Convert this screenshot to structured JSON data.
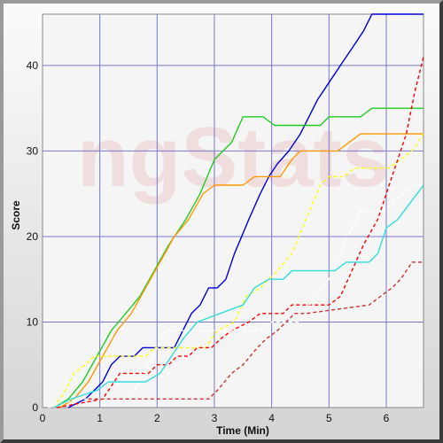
{
  "chart_data": {
    "type": "line",
    "xlabel": "Time (Min)",
    "ylabel": "Score",
    "xlim": [
      0,
      6.65
    ],
    "ylim": [
      0,
      46
    ],
    "x_ticks": [
      "0",
      "1",
      "2",
      "3",
      "4",
      "5",
      "6"
    ],
    "y_ticks": [
      "0",
      "10",
      "20",
      "30",
      "40"
    ],
    "x_tick_values": [
      0,
      1,
      2,
      3,
      4,
      5,
      6
    ],
    "y_tick_values": [
      0,
      10,
      20,
      30,
      40
    ],
    "grid": true,
    "watermark": "ngStats",
    "series": [
      {
        "color": "#0000dd",
        "style": "solid",
        "points": [
          [
            0.45,
            0
          ],
          [
            0.75,
            1
          ],
          [
            0.9,
            2
          ],
          [
            1.05,
            3
          ],
          [
            1.2,
            5
          ],
          [
            1.35,
            6
          ],
          [
            1.6,
            6
          ],
          [
            1.75,
            7
          ],
          [
            2.3,
            7
          ],
          [
            2.45,
            9
          ],
          [
            2.6,
            11
          ],
          [
            2.75,
            12
          ],
          [
            2.9,
            14
          ],
          [
            3.05,
            14
          ],
          [
            3.2,
            15
          ],
          [
            3.35,
            18
          ],
          [
            3.6,
            22
          ],
          [
            3.8,
            25
          ],
          [
            3.95,
            27
          ],
          [
            4.1,
            28.5
          ],
          [
            4.3,
            30
          ],
          [
            4.5,
            32
          ],
          [
            4.65,
            34
          ],
          [
            4.8,
            36
          ],
          [
            5.0,
            38
          ],
          [
            5.2,
            40
          ],
          [
            5.4,
            42
          ],
          [
            5.6,
            44
          ],
          [
            5.75,
            46
          ],
          [
            6.65,
            46
          ]
        ]
      },
      {
        "color": "#22cc22",
        "style": "solid",
        "points": [
          [
            0.2,
            0
          ],
          [
            0.45,
            1
          ],
          [
            0.7,
            3
          ],
          [
            0.95,
            6
          ],
          [
            1.2,
            9
          ],
          [
            1.45,
            11
          ],
          [
            1.7,
            13
          ],
          [
            1.95,
            16
          ],
          [
            2.2,
            19
          ],
          [
            2.5,
            22
          ],
          [
            2.75,
            25
          ],
          [
            3.0,
            29
          ],
          [
            3.3,
            31
          ],
          [
            3.5,
            34
          ],
          [
            3.85,
            34
          ],
          [
            4.05,
            33
          ],
          [
            4.85,
            33
          ],
          [
            5.0,
            34
          ],
          [
            5.55,
            34
          ],
          [
            5.75,
            35
          ],
          [
            6.65,
            35
          ]
        ]
      },
      {
        "color": "#ff9900",
        "style": "solid",
        "points": [
          [
            0.3,
            0
          ],
          [
            0.55,
            1
          ],
          [
            0.8,
            3
          ],
          [
            1.05,
            6
          ],
          [
            1.3,
            9
          ],
          [
            1.55,
            11
          ],
          [
            1.8,
            14
          ],
          [
            2.05,
            17
          ],
          [
            2.3,
            20
          ],
          [
            2.55,
            22
          ],
          [
            2.8,
            25
          ],
          [
            3.0,
            26
          ],
          [
            3.5,
            26
          ],
          [
            3.7,
            27
          ],
          [
            4.15,
            27
          ],
          [
            4.35,
            29
          ],
          [
            4.5,
            30
          ],
          [
            5.15,
            30
          ],
          [
            5.35,
            31
          ],
          [
            5.55,
            32
          ],
          [
            6.65,
            32
          ]
        ]
      },
      {
        "color": "#ffff00",
        "style": "dashed",
        "points": [
          [
            0.2,
            0
          ],
          [
            0.4,
            2
          ],
          [
            0.55,
            4
          ],
          [
            0.75,
            5
          ],
          [
            0.9,
            6
          ],
          [
            1.8,
            6
          ],
          [
            1.95,
            7
          ],
          [
            2.85,
            7
          ],
          [
            3.05,
            9
          ],
          [
            3.35,
            10
          ],
          [
            3.55,
            13
          ],
          [
            3.8,
            14
          ],
          [
            4.1,
            16
          ],
          [
            4.35,
            18
          ],
          [
            4.6,
            22
          ],
          [
            4.85,
            26
          ],
          [
            5.0,
            27
          ],
          [
            5.25,
            27
          ],
          [
            5.45,
            28
          ],
          [
            6.05,
            28
          ],
          [
            6.25,
            29
          ],
          [
            6.45,
            30
          ],
          [
            6.65,
            32
          ]
        ]
      },
      {
        "color": "#ff0000",
        "style": "dashed",
        "points": [
          [
            0.25,
            0
          ],
          [
            1.05,
            1
          ],
          [
            1.25,
            3
          ],
          [
            1.35,
            4
          ],
          [
            1.85,
            4
          ],
          [
            2.0,
            5
          ],
          [
            2.2,
            5
          ],
          [
            2.35,
            6
          ],
          [
            2.55,
            6
          ],
          [
            2.7,
            7
          ],
          [
            2.95,
            7
          ],
          [
            3.1,
            8
          ],
          [
            3.3,
            9
          ],
          [
            3.6,
            10
          ],
          [
            3.8,
            11
          ],
          [
            4.2,
            11
          ],
          [
            4.35,
            12
          ],
          [
            5.0,
            12
          ],
          [
            5.2,
            13
          ],
          [
            5.4,
            16
          ],
          [
            5.6,
            19
          ],
          [
            5.85,
            22
          ],
          [
            6.0,
            25
          ],
          [
            6.2,
            29
          ],
          [
            6.35,
            32
          ],
          [
            6.5,
            37
          ],
          [
            6.65,
            41
          ]
        ]
      },
      {
        "color": "#ffffff",
        "style": "dashed",
        "points": [
          [
            0.1,
            0
          ],
          [
            0.6,
            1
          ],
          [
            1.5,
            1
          ],
          [
            1.7,
            3
          ],
          [
            2.0,
            7
          ],
          [
            2.15,
            9
          ],
          [
            2.55,
            9
          ],
          [
            3.8,
            9
          ],
          [
            4.0,
            10
          ],
          [
            4.5,
            10
          ],
          [
            4.75,
            13
          ],
          [
            5.0,
            15
          ],
          [
            5.25,
            19
          ],
          [
            5.55,
            23
          ],
          [
            5.95,
            23
          ],
          [
            6.1,
            24
          ],
          [
            6.3,
            25
          ],
          [
            6.5,
            26
          ],
          [
            6.65,
            26
          ]
        ]
      },
      {
        "color": "#33dddd",
        "style": "solid",
        "points": [
          [
            0.2,
            0
          ],
          [
            0.5,
            1
          ],
          [
            0.95,
            2
          ],
          [
            1.15,
            3
          ],
          [
            1.8,
            3
          ],
          [
            2.05,
            4
          ],
          [
            2.45,
            8
          ],
          [
            2.7,
            10
          ],
          [
            3.1,
            11
          ],
          [
            3.5,
            12
          ],
          [
            3.7,
            14
          ],
          [
            3.95,
            15
          ],
          [
            4.2,
            15
          ],
          [
            4.35,
            16
          ],
          [
            5.1,
            16
          ],
          [
            5.3,
            17
          ],
          [
            5.7,
            17
          ],
          [
            5.85,
            18
          ],
          [
            6.0,
            21
          ],
          [
            6.2,
            22
          ],
          [
            6.65,
            26
          ]
        ]
      },
      {
        "color": "#cc3333",
        "style": "dashed",
        "points": [
          [
            0.8,
            1
          ],
          [
            2.9,
            1
          ],
          [
            3.05,
            2
          ],
          [
            3.3,
            4
          ],
          [
            3.5,
            5
          ],
          [
            3.75,
            7
          ],
          [
            3.9,
            8
          ],
          [
            4.1,
            9
          ],
          [
            4.25,
            10
          ],
          [
            4.4,
            11
          ],
          [
            4.6,
            11
          ],
          [
            5.7,
            12
          ],
          [
            5.9,
            13
          ],
          [
            6.1,
            14
          ],
          [
            6.25,
            15
          ],
          [
            6.45,
            17
          ],
          [
            6.65,
            17
          ]
        ]
      }
    ]
  }
}
